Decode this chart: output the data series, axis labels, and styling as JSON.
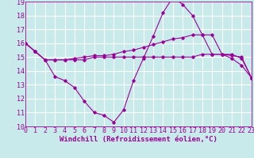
{
  "background_color": "#c8eaea",
  "grid_color": "#ffffff",
  "line_color": "#990099",
  "x_min": 0,
  "x_max": 23,
  "y_min": 10,
  "y_max": 19,
  "xlabel": "Windchill (Refroidissement éolien,°C)",
  "series1_x": [
    0,
    1,
    2,
    3,
    4,
    5,
    6,
    7,
    8,
    9,
    10,
    11,
    12,
    13,
    14,
    15,
    16,
    17,
    18,
    19,
    20,
    21,
    22,
    23
  ],
  "series1_y": [
    16.0,
    15.4,
    14.8,
    14.8,
    14.8,
    14.8,
    14.8,
    15.0,
    15.0,
    15.0,
    15.0,
    15.0,
    15.0,
    15.0,
    15.0,
    15.0,
    15.0,
    15.0,
    15.2,
    15.2,
    15.2,
    15.1,
    15.0,
    13.5
  ],
  "series2_x": [
    0,
    1,
    2,
    3,
    4,
    5,
    6,
    7,
    8,
    9,
    10,
    11,
    12,
    13,
    14,
    15,
    16,
    17,
    18,
    19,
    20,
    21,
    22,
    23
  ],
  "series2_y": [
    16.0,
    15.4,
    14.8,
    13.6,
    13.3,
    12.8,
    11.8,
    11.0,
    10.8,
    10.3,
    11.2,
    13.3,
    14.9,
    16.5,
    18.2,
    19.3,
    18.8,
    18.0,
    16.6,
    15.2,
    15.2,
    14.9,
    14.4,
    13.5
  ],
  "series3_x": [
    0,
    1,
    2,
    3,
    4,
    5,
    6,
    7,
    8,
    9,
    10,
    11,
    12,
    13,
    14,
    15,
    16,
    17,
    18,
    19,
    20,
    21,
    22,
    23
  ],
  "series3_y": [
    16.0,
    15.4,
    14.8,
    14.8,
    14.8,
    14.9,
    15.0,
    15.1,
    15.1,
    15.2,
    15.4,
    15.5,
    15.7,
    15.9,
    16.1,
    16.3,
    16.4,
    16.6,
    16.6,
    16.6,
    15.2,
    15.2,
    14.9,
    13.5
  ],
  "xtick_labels": [
    "0",
    "1",
    "2",
    "3",
    "4",
    "5",
    "6",
    "7",
    "8",
    "9",
    "10",
    "11",
    "12",
    "13",
    "14",
    "15",
    "16",
    "17",
    "18",
    "19",
    "20",
    "21",
    "22",
    "23"
  ],
  "ytick_labels": [
    "10",
    "11",
    "12",
    "13",
    "14",
    "15",
    "16",
    "17",
    "18",
    "19"
  ],
  "xlabel_fontsize": 6.5,
  "tick_fontsize": 6.0
}
